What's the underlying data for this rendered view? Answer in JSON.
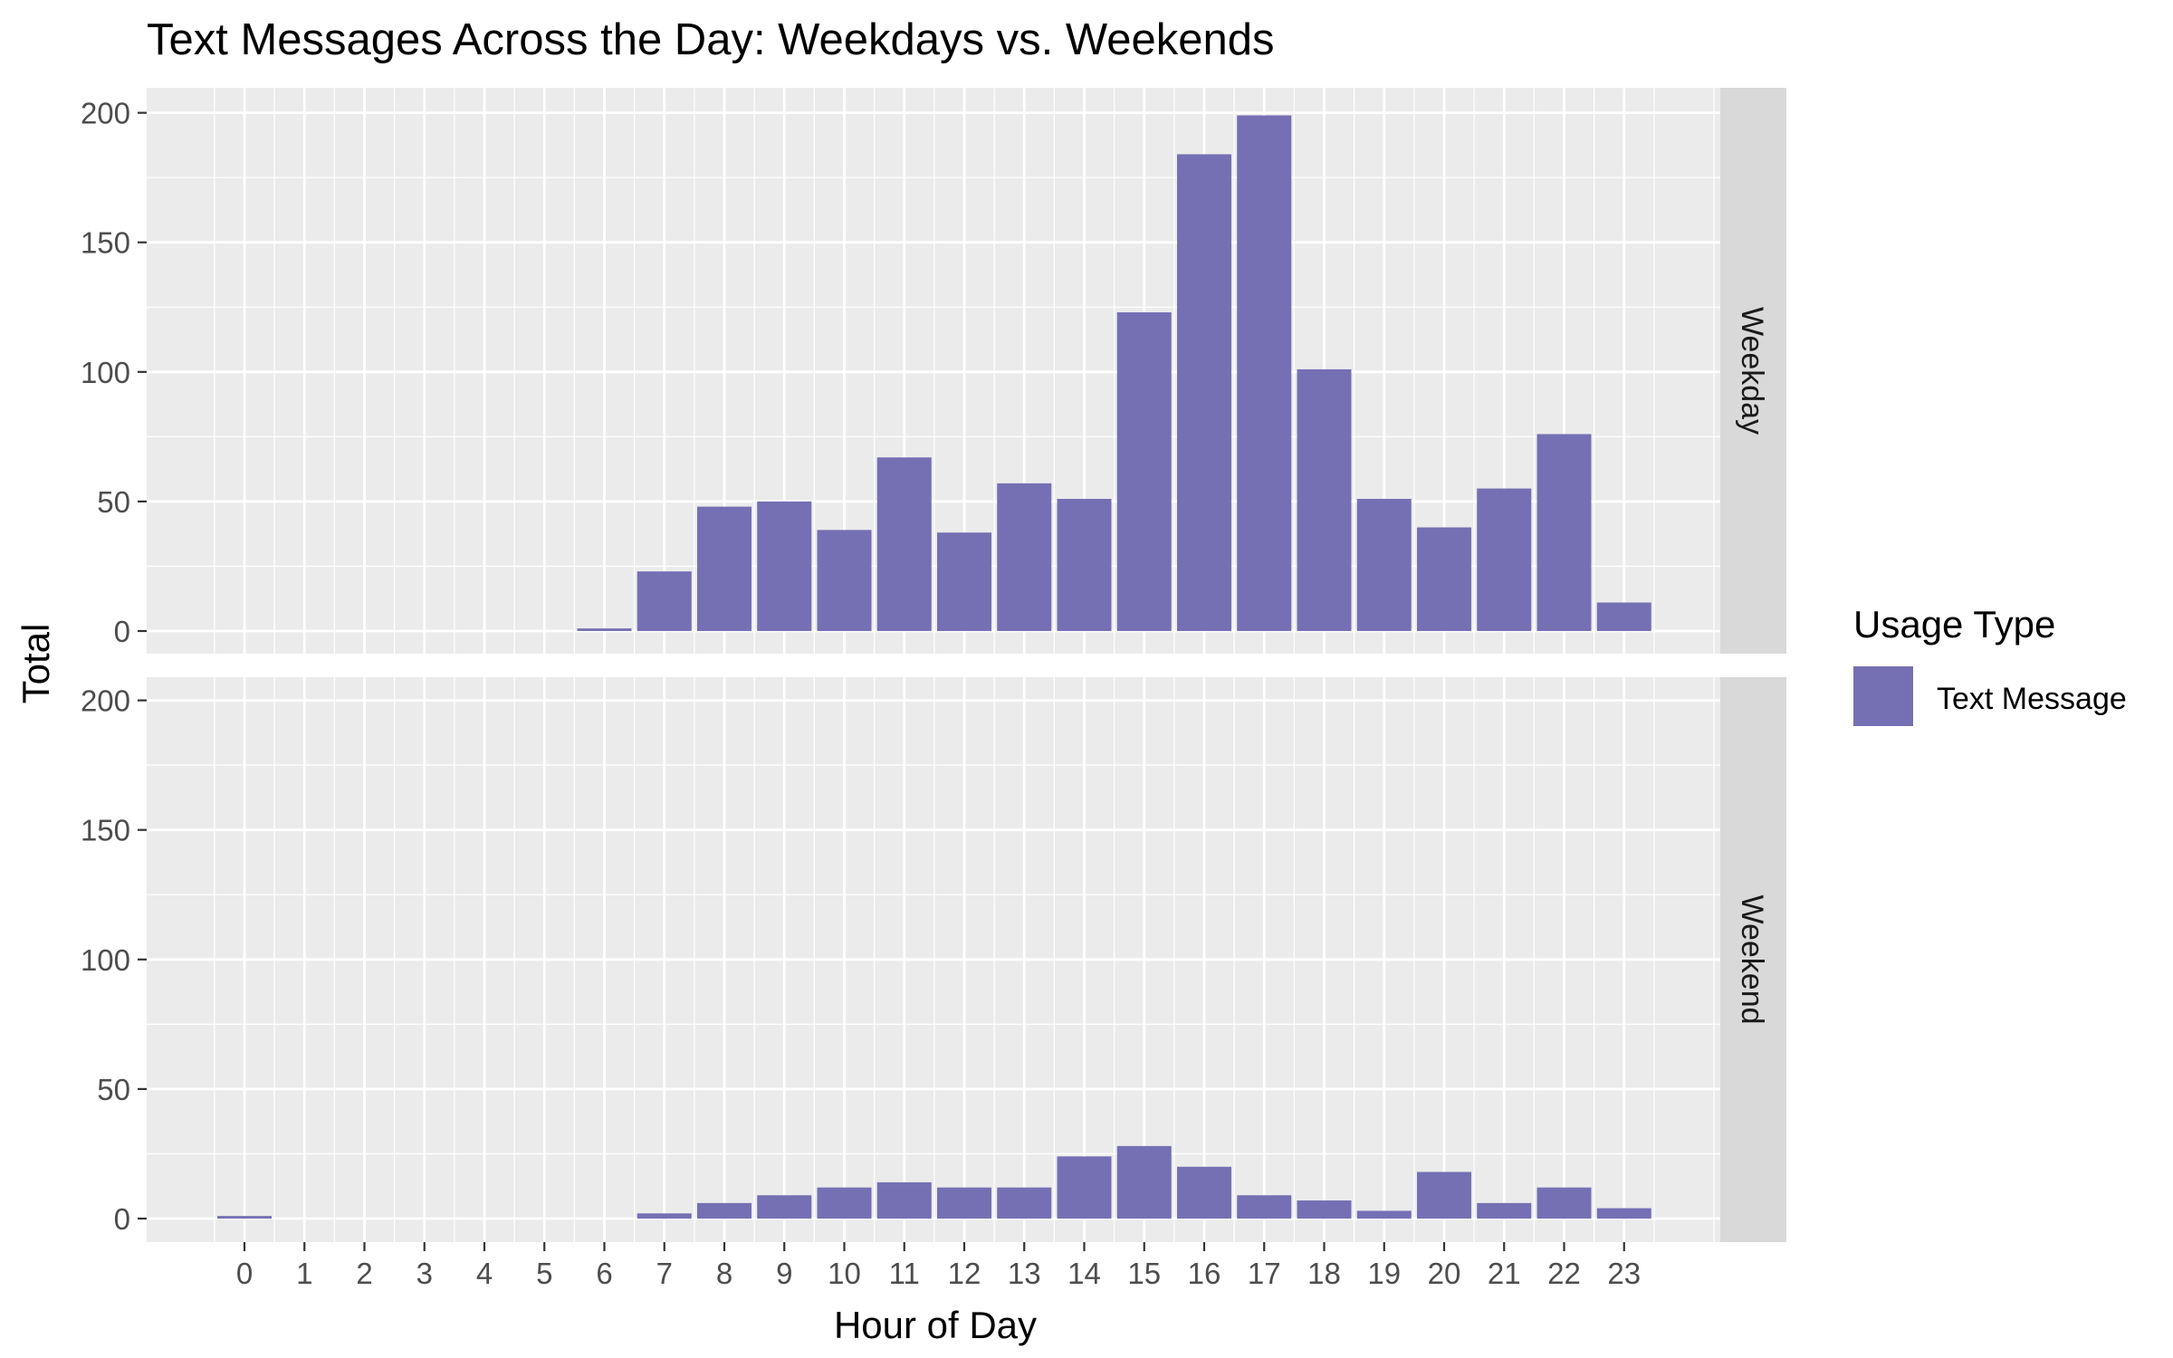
{
  "chart_data": {
    "type": "bar",
    "title": "Text Messages Across the Day: Weekdays vs. Weekends",
    "xlabel": "Hour of Day",
    "ylabel": "Total",
    "ylim": [
      0,
      210
    ],
    "yticks": [
      0,
      50,
      100,
      150,
      200
    ],
    "categories": [
      "0",
      "1",
      "2",
      "3",
      "4",
      "5",
      "6",
      "7",
      "8",
      "9",
      "10",
      "11",
      "12",
      "13",
      "14",
      "15",
      "16",
      "17",
      "18",
      "19",
      "20",
      "21",
      "22",
      "23"
    ],
    "bar_color": "#7570b4",
    "grid": true,
    "legend": {
      "title": "Usage Type",
      "position": "right",
      "entries": [
        {
          "label": "Text Message",
          "color": "#7570b4"
        }
      ]
    },
    "facets": [
      {
        "label": "Weekday",
        "values": [
          0,
          0,
          0,
          0,
          0,
          0,
          1,
          23,
          48,
          50,
          39,
          67,
          38,
          57,
          51,
          123,
          184,
          199,
          101,
          51,
          40,
          55,
          76,
          11
        ]
      },
      {
        "label": "Weekend",
        "values": [
          1,
          0,
          0,
          0,
          0,
          0,
          0,
          2,
          6,
          9,
          12,
          14,
          12,
          12,
          24,
          28,
          20,
          9,
          7,
          3,
          18,
          6,
          12,
          4
        ]
      }
    ]
  }
}
